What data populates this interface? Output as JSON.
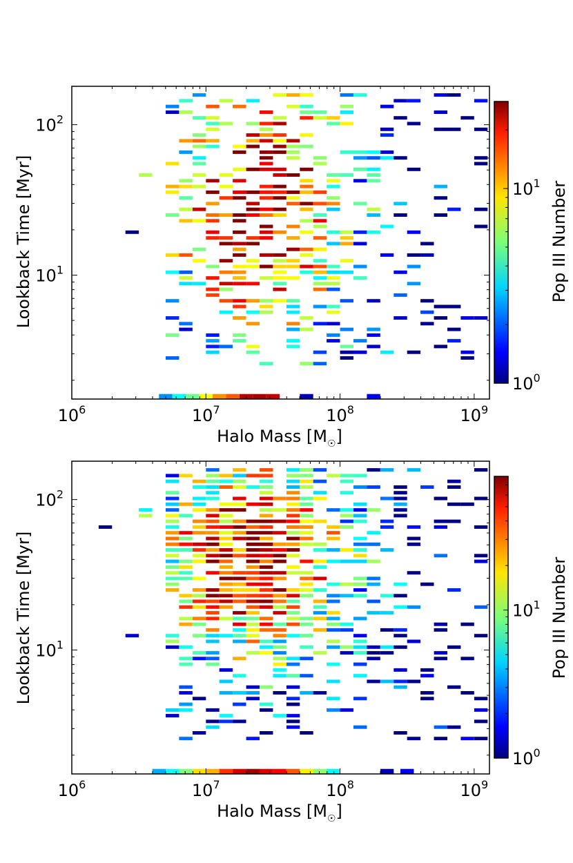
{
  "chart_data": [
    {
      "type": "heatmap",
      "title": "",
      "xlabel": "Halo Mass [M",
      "xlabel_sub": "☉",
      "xlabel_close": "]",
      "ylabel": "Lookback Time [Myr]",
      "xscale": "log",
      "yscale": "log",
      "xlim": [
        1000000,
        1300000000
      ],
      "ylim": [
        1.5,
        180
      ],
      "x_ticks": [
        {
          "value": 1000000,
          "base": "10",
          "exp": "6"
        },
        {
          "value": 10000000,
          "base": "10",
          "exp": "7"
        },
        {
          "value": 100000000,
          "base": "10",
          "exp": "8"
        },
        {
          "value": 1000000000,
          "base": "10",
          "exp": "9"
        }
      ],
      "y_ticks": [
        {
          "value": 10,
          "base": "10",
          "exp": "1"
        },
        {
          "value": 100,
          "base": "10",
          "exp": "2"
        }
      ],
      "colorbar": {
        "label": "Pop III Number",
        "scale": "log",
        "range": [
          1,
          28
        ],
        "ticks": [
          {
            "value": 1,
            "base": "10",
            "exp": "0"
          },
          {
            "value": 10,
            "base": "10",
            "exp": "1"
          }
        ]
      },
      "seed": 11,
      "density": 0.55,
      "peak": {
        "log_mass": 7.35,
        "log_time": 1.45
      },
      "spread": {
        "log_mass": 0.55,
        "log_time": 0.75
      },
      "bottom_row": {
        "time": 1.62,
        "log_mass_start": 6.65,
        "log_mass_end": 7.5,
        "log_mass_extra": [
          7.7,
          8.2
        ]
      }
    },
    {
      "type": "heatmap",
      "title": "",
      "xlabel": "Halo Mass [M",
      "xlabel_sub": "☉",
      "xlabel_close": "]",
      "ylabel": "Lookback Time [Myr]",
      "xscale": "log",
      "yscale": "log",
      "xlim": [
        1000000,
        1300000000
      ],
      "ylim": [
        1.5,
        180
      ],
      "x_ticks": [
        {
          "value": 1000000,
          "base": "10",
          "exp": "6"
        },
        {
          "value": 10000000,
          "base": "10",
          "exp": "7"
        },
        {
          "value": 100000000,
          "base": "10",
          "exp": "8"
        },
        {
          "value": 1000000000,
          "base": "10",
          "exp": "9"
        }
      ],
      "y_ticks": [
        {
          "value": 10,
          "base": "10",
          "exp": "1"
        },
        {
          "value": 100,
          "base": "10",
          "exp": "2"
        }
      ],
      "colorbar": {
        "label": "Pop III Number",
        "scale": "log",
        "range": [
          1,
          80
        ],
        "ticks": [
          {
            "value": 1,
            "base": "10",
            "exp": "0"
          },
          {
            "value": 10,
            "base": "10",
            "exp": "1"
          }
        ]
      },
      "seed": 29,
      "density": 0.85,
      "peak": {
        "log_mass": 7.3,
        "log_time": 1.6
      },
      "spread": {
        "log_mass": 0.6,
        "log_time": 0.55
      },
      "bottom_row": {
        "time": 1.62,
        "log_mass_start": 6.6,
        "log_mass_end": 7.9,
        "log_mass_extra": [
          8.3,
          8.45
        ]
      }
    }
  ]
}
